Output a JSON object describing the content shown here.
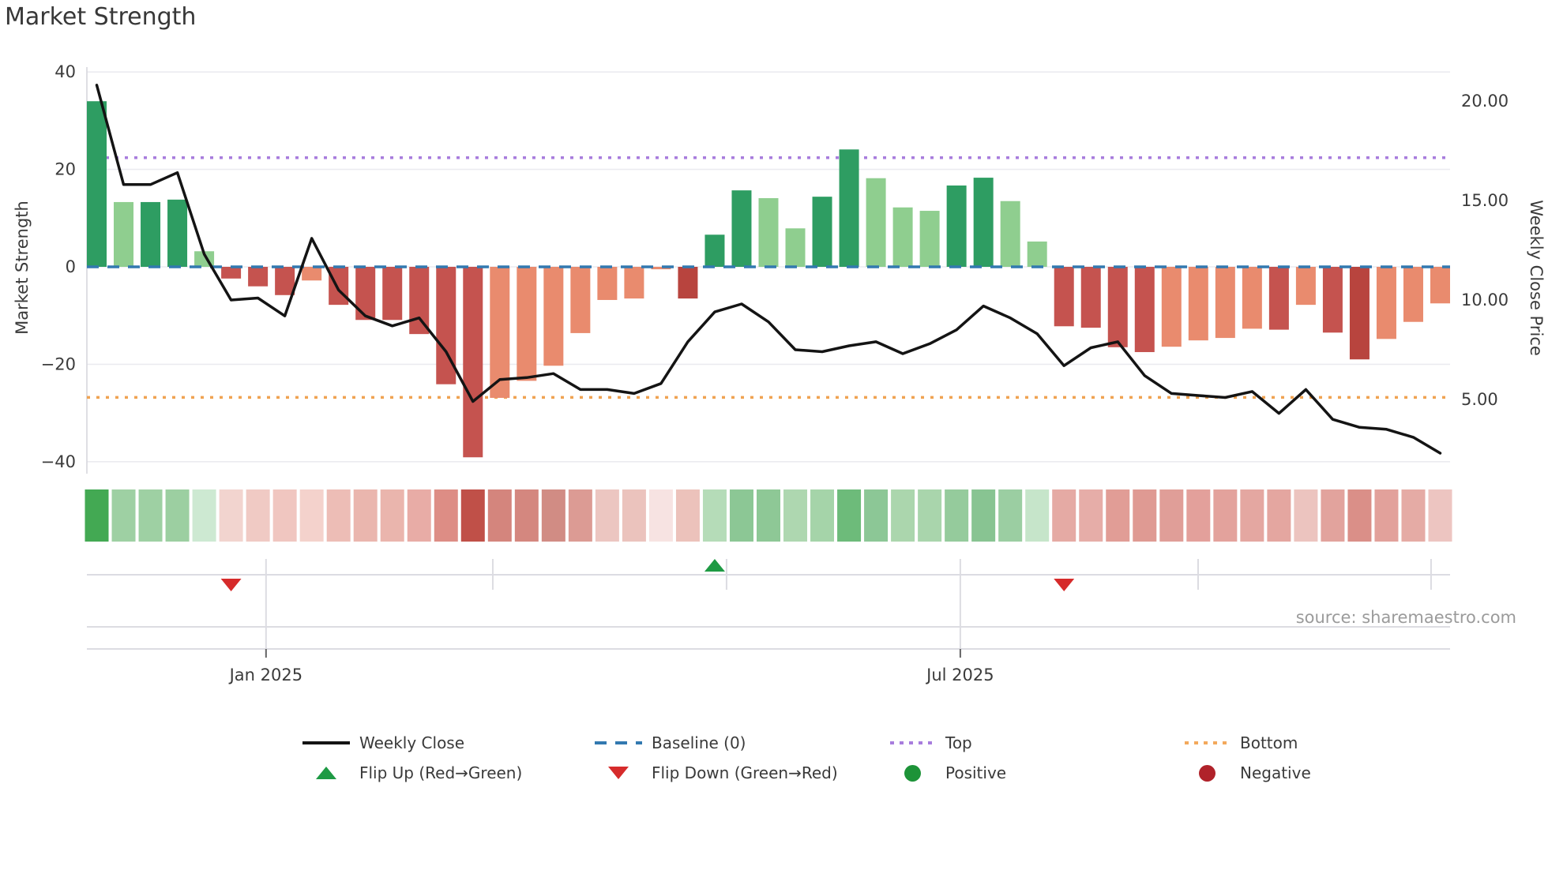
{
  "title": "Market Strength",
  "source": "source: sharemaestro.com",
  "axes": {
    "left": {
      "title": "Market Strength",
      "tick_labels": [
        "40",
        "20",
        "0",
        "−20",
        "−40"
      ],
      "tick_values": [
        40,
        20,
        0,
        -20,
        -40
      ]
    },
    "right": {
      "title": "Weekly Close Price",
      "tick_labels": [
        "20.00",
        "15.00",
        "10.00",
        "5.00"
      ],
      "tick_values": [
        20,
        15,
        10,
        5
      ]
    },
    "x": {
      "month_ticks": [
        {
          "label": "Jan 2025",
          "index": 6.3,
          "major": true
        },
        {
          "label": "",
          "index": 14.74,
          "major": false
        },
        {
          "label": "",
          "index": 23.44,
          "major": false
        },
        {
          "label": "Jul 2025",
          "index": 32.14,
          "major": true
        },
        {
          "label": "",
          "index": 40.99,
          "major": false
        },
        {
          "label": "",
          "index": 49.66,
          "major": false
        }
      ]
    }
  },
  "chart_data": {
    "type": [
      "bar",
      "line",
      "heatmap"
    ],
    "title": "Market Strength",
    "ylabel_left": "Market Strength",
    "ylabel_right": "Weekly Close Price",
    "ylim_left": [
      -45,
      42
    ],
    "ylim_right": [
      1.6,
      22.3
    ],
    "grid": "horizontal",
    "baseline": 0,
    "top_level": 22.4,
    "bottom_level": -26.8,
    "bars": {
      "name": "Market Strength",
      "values": [
        34.0,
        13.3,
        13.3,
        13.8,
        3.2,
        -2.4,
        -4.0,
        -5.8,
        -2.8,
        -7.8,
        -10.9,
        -10.9,
        -13.8,
        -24.1,
        -39.1,
        -26.9,
        -23.4,
        -20.3,
        -13.6,
        -6.8,
        -6.5,
        -0.5,
        -6.5,
        6.6,
        15.7,
        14.1,
        7.9,
        14.4,
        24.1,
        18.2,
        12.2,
        11.5,
        16.7,
        18.3,
        13.5,
        5.2,
        -12.2,
        -12.5,
        -16.5,
        -17.5,
        -16.4,
        -15.1,
        -14.6,
        -12.7,
        -12.9,
        -7.8,
        -13.5,
        -19.0,
        -14.8,
        -11.3,
        -7.5
      ],
      "shades": [
        "dg",
        "lg",
        "dg",
        "dg",
        "lg",
        "r",
        "r",
        "r",
        "s",
        "r",
        "r",
        "r",
        "r",
        "r",
        "r",
        "s",
        "s",
        "s",
        "s",
        "s",
        "s",
        "s",
        "dr",
        "dg",
        "dg",
        "lg",
        "lg",
        "dg",
        "dg",
        "lg",
        "lg",
        "lg",
        "dg",
        "dg",
        "lg",
        "lg",
        "r",
        "r",
        "r",
        "r",
        "s",
        "s",
        "s",
        "s",
        "r",
        "s",
        "r",
        "dr",
        "s",
        "s",
        "s"
      ],
      "shade_colors": {
        "dg": "#2e9d62",
        "lg": "#8fce8f",
        "r": "#c5534f",
        "s": "#e98b6e",
        "dr": "#b8443e"
      }
    },
    "line": {
      "name": "Weekly Close",
      "prices": [
        20.8,
        15.8,
        15.8,
        16.4,
        12.3,
        10.0,
        10.1,
        9.2,
        13.1,
        10.5,
        9.2,
        8.7,
        9.1,
        7.4,
        4.9,
        6.0,
        6.1,
        6.3,
        5.5,
        5.5,
        5.3,
        5.8,
        7.9,
        9.4,
        9.8,
        8.9,
        7.5,
        7.4,
        7.7,
        7.9,
        7.3,
        7.8,
        8.5,
        9.7,
        9.1,
        8.3,
        6.7,
        7.6,
        7.9,
        6.2,
        5.3,
        5.2,
        5.1,
        5.4,
        4.3,
        5.5,
        4.0,
        3.6,
        3.5,
        3.1,
        2.3
      ],
      "color": "#141414"
    },
    "heatmap_colors": [
      "#43a953",
      "#9ed0a3",
      "#9ed0a3",
      "#9ccfa1",
      "#cde9d2",
      "#f2d4cf",
      "#f0cac4",
      "#f0c6c0",
      "#f4d2cc",
      "#edbdb6",
      "#eab6ae",
      "#eab5ad",
      "#e8aca6",
      "#dd8d85",
      "#c05048",
      "#d4857d",
      "#d4877f",
      "#d18c84",
      "#dc9b94",
      "#ecc6c1",
      "#ebc3bd",
      "#f7e3e2",
      "#ecc2bb",
      "#b5dcb8",
      "#8cc795",
      "#8ec896",
      "#aed7b0",
      "#a5d4a9",
      "#6dbb7a",
      "#8cc796",
      "#abd6ad",
      "#a9d5ac",
      "#95cb9c",
      "#88c492",
      "#9bcea2",
      "#c6e5ca",
      "#e5aaa4",
      "#e6ada8",
      "#e19d96",
      "#df9a93",
      "#e09e98",
      "#e3a09b",
      "#e3a29c",
      "#e4a7a1",
      "#e4a6a0",
      "#ecc4bf",
      "#e2a39d",
      "#da8f88",
      "#e2a19b",
      "#e5aba5",
      "#edc5c1"
    ],
    "flip_markers": [
      {
        "type": "down",
        "index": 5
      },
      {
        "type": "up",
        "index": 23
      },
      {
        "type": "down",
        "index": 36
      }
    ],
    "style_colors": {
      "baseline": "#3279b0",
      "top": "#a87ddd",
      "bottom": "#f0a352",
      "flip_up": "#1e9a44",
      "flip_down": "#d62b2b",
      "positive_dot": "#1d9338",
      "negative_dot": "#b0222a",
      "grid": "#ebebf0",
      "strip_line": "#dcdce2",
      "tick_text": "#3b3b3b"
    }
  },
  "legend": {
    "items": [
      {
        "label": "Weekly Close",
        "swatch": "line",
        "color": "#141414"
      },
      {
        "label": "Baseline (0)",
        "swatch": "dashed",
        "color": "#3279b0"
      },
      {
        "label": "Top",
        "swatch": "dotted",
        "color": "#a87ddd"
      },
      {
        "label": "Bottom",
        "swatch": "dotted",
        "color": "#f3a95c"
      },
      {
        "label": "Flip Up (Red→Green)",
        "swatch": "triangle-up",
        "color": "#1e9a44"
      },
      {
        "label": "Flip Down (Green→Red)",
        "swatch": "triangle-down",
        "color": "#d62b2b"
      },
      {
        "label": "Positive",
        "swatch": "dot",
        "color": "#1d9338"
      },
      {
        "label": "Negative",
        "swatch": "dot",
        "color": "#b0222a"
      }
    ]
  }
}
